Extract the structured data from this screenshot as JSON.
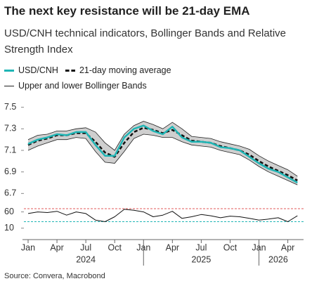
{
  "title": "The next key resistance will be 21-day EMA",
  "subtitle": "USD/CNH technical indicators, Bollinger Bands and Relative Strength Index",
  "source": "Source: Convera, Macrobond",
  "chart_data": [
    {
      "type": "line",
      "x": [
        "2024-01",
        "2024-02",
        "2024-03",
        "2024-04",
        "2024-05",
        "2024-06",
        "2024-07",
        "2024-08",
        "2024-09",
        "2024-10",
        "2024-11",
        "2024-12",
        "2025-01",
        "2025-02",
        "2025-03",
        "2025-04",
        "2025-05",
        "2025-06",
        "2025-07",
        "2025-08",
        "2025-09",
        "2025-10",
        "2025-11",
        "2025-12",
        "2026-01",
        "2026-02",
        "2026-03",
        "2026-04",
        "2026-05"
      ],
      "xlim": [
        "2024-01",
        "2026-06"
      ],
      "ylim": [
        6.65,
        7.55
      ],
      "yticks": [
        6.7,
        6.9,
        7.1,
        7.3,
        7.5
      ],
      "series": [
        {
          "name": "USD/CNH",
          "color": "#1fb5b5",
          "values": [
            7.16,
            7.2,
            7.22,
            7.25,
            7.24,
            7.27,
            7.27,
            7.15,
            7.05,
            7.05,
            7.22,
            7.3,
            7.33,
            7.28,
            7.25,
            7.32,
            7.22,
            7.18,
            7.18,
            7.17,
            7.13,
            7.12,
            7.1,
            7.04,
            6.98,
            6.93,
            6.9,
            6.85,
            6.8
          ]
        },
        {
          "name": "21-day moving average",
          "color": "#111111",
          "dashed": true,
          "values": [
            7.15,
            7.19,
            7.21,
            7.24,
            7.24,
            7.26,
            7.26,
            7.18,
            7.08,
            7.04,
            7.17,
            7.27,
            7.31,
            7.29,
            7.26,
            7.29,
            7.24,
            7.19,
            7.18,
            7.17,
            7.14,
            7.12,
            7.1,
            7.06,
            7.0,
            6.95,
            6.91,
            6.87,
            6.82
          ]
        }
      ],
      "bands": {
        "name": "Upper and lower Bollinger Bands",
        "color": "#222222",
        "fill": "#cfcfcf",
        "upper": [
          7.2,
          7.24,
          7.25,
          7.28,
          7.28,
          7.3,
          7.31,
          7.27,
          7.17,
          7.1,
          7.25,
          7.33,
          7.37,
          7.34,
          7.3,
          7.36,
          7.3,
          7.23,
          7.22,
          7.21,
          7.18,
          7.16,
          7.14,
          7.11,
          7.05,
          7.0,
          6.96,
          6.92,
          6.86
        ],
        "lower": [
          7.1,
          7.14,
          7.17,
          7.2,
          7.2,
          7.22,
          7.21,
          7.09,
          6.99,
          6.98,
          7.09,
          7.21,
          7.25,
          7.24,
          7.22,
          7.22,
          7.18,
          7.15,
          7.14,
          7.13,
          7.1,
          7.08,
          7.06,
          7.01,
          6.95,
          6.9,
          6.86,
          6.82,
          6.78
        ]
      }
    },
    {
      "type": "line",
      "x": [
        "2024-01",
        "2024-02",
        "2024-03",
        "2024-04",
        "2024-05",
        "2024-06",
        "2024-07",
        "2024-08",
        "2024-09",
        "2024-10",
        "2024-11",
        "2024-12",
        "2025-01",
        "2025-02",
        "2025-03",
        "2025-04",
        "2025-05",
        "2025-06",
        "2025-07",
        "2025-08",
        "2025-09",
        "2025-10",
        "2025-11",
        "2025-12",
        "2026-01",
        "2026-02",
        "2026-03",
        "2026-04",
        "2026-05"
      ],
      "xlim": [
        "2024-01",
        "2026-06"
      ],
      "ylim": [
        -10,
        85
      ],
      "yticks": [
        10,
        60
      ],
      "series": [
        {
          "color": "#111111",
          "values": [
            55,
            60,
            58,
            62,
            50,
            60,
            55,
            35,
            30,
            45,
            68,
            65,
            60,
            45,
            50,
            62,
            40,
            45,
            52,
            48,
            42,
            47,
            45,
            40,
            35,
            38,
            42,
            30,
            48
          ]
        }
      ],
      "reference_lines": [
        {
          "value": 70,
          "color": "#e05a5a"
        },
        {
          "value": 30,
          "color": "#1fb5b5"
        }
      ],
      "xticks": [
        {
          "value": "2024-01",
          "label": "Jan"
        },
        {
          "value": "2024-04",
          "label": "Apr"
        },
        {
          "value": "2024-07",
          "label": "Jul"
        },
        {
          "value": "2024-10",
          "label": "Oct"
        },
        {
          "value": "2025-01",
          "label": "Jan"
        },
        {
          "value": "2025-04",
          "label": "Apr"
        },
        {
          "value": "2025-07",
          "label": "Jul"
        },
        {
          "value": "2025-10",
          "label": "Oct"
        },
        {
          "value": "2026-01",
          "label": "Jan"
        },
        {
          "value": "2026-04",
          "label": "Apr"
        }
      ],
      "year_labels": [
        {
          "value": "2024-07",
          "label": "2024"
        },
        {
          "value": "2025-07",
          "label": "2025"
        },
        {
          "value": "2026-03",
          "label": "2026"
        }
      ]
    }
  ]
}
